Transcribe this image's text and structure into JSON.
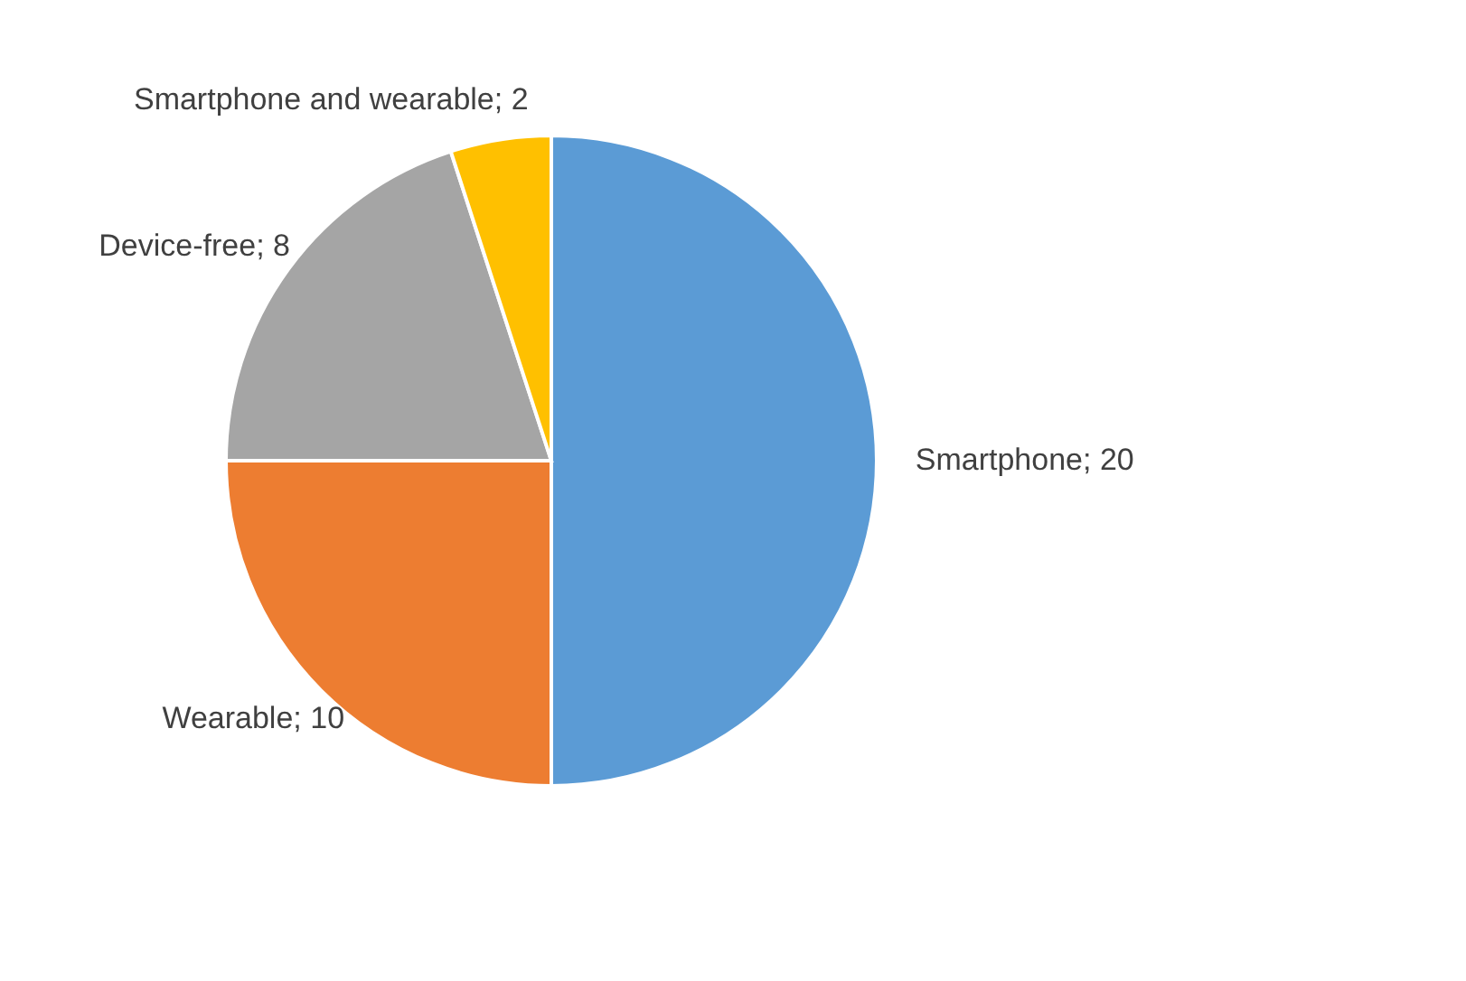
{
  "chart_data": {
    "type": "pie",
    "categories": [
      "Smartphone",
      "Wearable",
      "Device-free",
      "Smartphone and wearable"
    ],
    "values": [
      20,
      10,
      8,
      2
    ],
    "colors": [
      "#5b9bd5",
      "#ed7d31",
      "#a5a5a5",
      "#ffc000"
    ],
    "value_labels": [
      "; 20",
      "; 10",
      "; 8",
      "; 2"
    ],
    "legend": false
  }
}
